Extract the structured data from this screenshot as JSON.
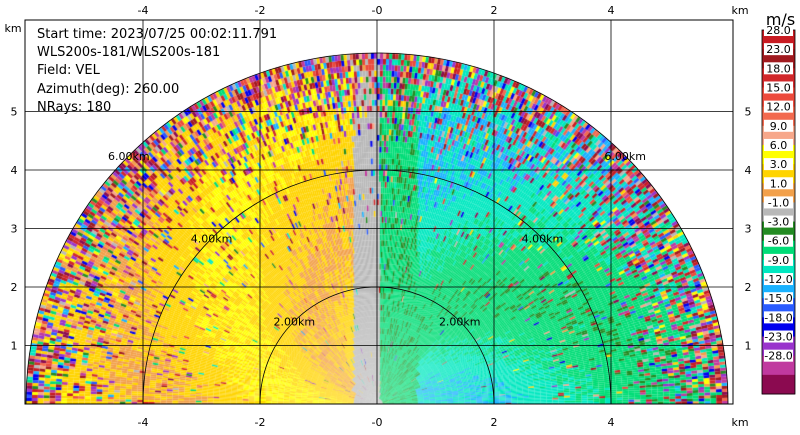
{
  "info": {
    "start_time": "Start time: 2023/07/25 00:02:11.791",
    "instrument": "WLS200s-181/WLS200s-181",
    "field": "Field: VEL",
    "azimuth": "Azimuth(deg): 260.00",
    "nrays": "NRays: 180"
  },
  "chart_data": {
    "type": "heatmap",
    "title": "",
    "xlabel": "km",
    "ylabel": "km",
    "xlim": [
      -6.0,
      6.0
    ],
    "ylim": [
      0,
      6.0
    ],
    "x_ticks": [
      "-4",
      "-2",
      "-0",
      "2",
      "4"
    ],
    "y_ticks": [
      "1",
      "2",
      "3",
      "4",
      "5"
    ],
    "grid": true,
    "range_rings": [
      {
        "label": "2.00km",
        "radius_km": 2
      },
      {
        "label": "4.00km",
        "radius_km": 4
      },
      {
        "label": "6.00km",
        "radius_km": 6
      }
    ],
    "colorbar": {
      "unit": "m/s",
      "labels": [
        "28.0",
        "23.0",
        "18.0",
        "15.0",
        "12.0",
        "9.0",
        "6.0",
        "3.0",
        "1.0",
        "-1.0",
        "-3.0",
        "-6.0",
        "-9.0",
        "-12.0",
        "-15.0",
        "-18.0",
        "-23.0",
        "-28.0"
      ],
      "colors": [
        "#c81b22",
        "#a01a1f",
        "#d1282b",
        "#ec4a3c",
        "#f26a4f",
        "#f7a78a",
        "#ffff00",
        "#ffd400",
        "#f2a04a",
        "#b8b8b8",
        "#238b22",
        "#00dd77",
        "#00e8c0",
        "#1ab2ff",
        "#2a5bff",
        "#0000ee",
        "#9933cc",
        "#c0399f",
        "#8b0a50"
      ]
    }
  }
}
